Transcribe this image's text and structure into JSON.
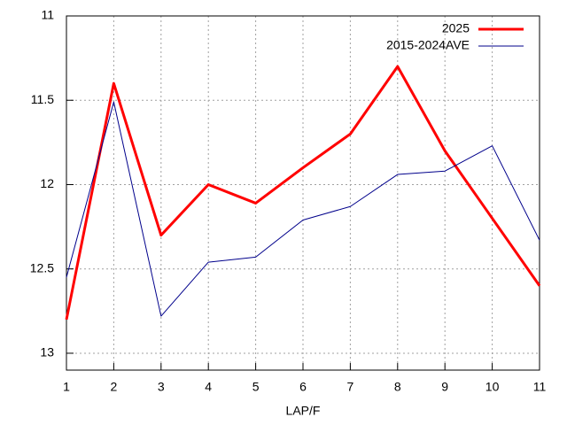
{
  "chart_data": {
    "type": "line",
    "x_label": "LAP/F",
    "x": [
      1,
      2,
      3,
      4,
      5,
      6,
      7,
      8,
      9,
      10,
      11
    ],
    "series": [
      {
        "name": "2025",
        "color": "#ff0000",
        "width": 3,
        "values": [
          12.8,
          11.4,
          12.3,
          12.0,
          12.11,
          11.9,
          11.7,
          11.3,
          11.8,
          12.2,
          12.6
        ]
      },
      {
        "name": "2015-2024AVE",
        "color": "#00008b",
        "width": 1,
        "values": [
          12.55,
          11.51,
          12.78,
          12.46,
          12.43,
          12.21,
          12.13,
          11.94,
          11.92,
          11.77,
          12.33
        ]
      }
    ],
    "xlim": [
      1,
      11
    ],
    "xticks": [
      1,
      2,
      3,
      4,
      5,
      6,
      7,
      8,
      9,
      10,
      11
    ],
    "ylim": [
      11,
      13.1
    ],
    "yticks": [
      11,
      11.5,
      12,
      12.5,
      13
    ],
    "y_inverted": true,
    "grid": true,
    "legend": "top-right"
  }
}
